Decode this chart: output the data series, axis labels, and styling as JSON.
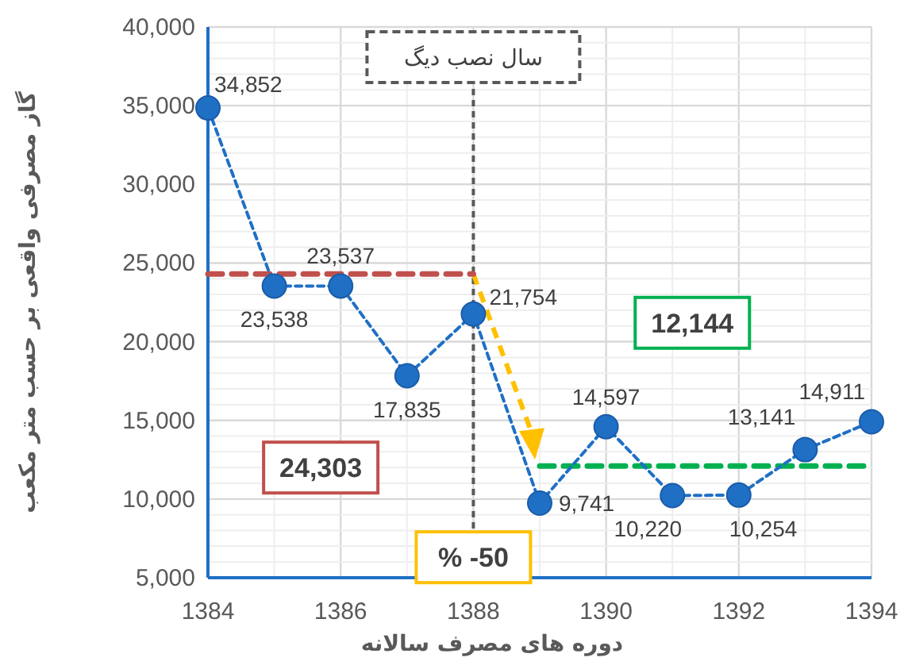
{
  "chart_data": {
    "type": "line",
    "xlabel": "دوره های مصرف سالانه",
    "ylabel": "گاز مصرفی واقعی بر حسب متر مکعب",
    "x": [
      1384,
      1385,
      1386,
      1387,
      1388,
      1389,
      1390,
      1391,
      1392,
      1393,
      1394
    ],
    "series": [
      {
        "color": "#1f6fc5",
        "values": [
          34852,
          23538,
          23537,
          17835,
          21754,
          9741,
          14597,
          10220,
          10254,
          13141,
          14911
        ],
        "marker": "circle",
        "line_style": "dashed",
        "value_labels": [
          "34,852",
          "23,538",
          "23,537",
          "17,835",
          "21,754",
          "9,741",
          "14,597",
          "10,220",
          "10,254",
          "13,141",
          "14,911"
        ]
      },
      {
        "color": "#c0504d",
        "x": [
          1384,
          1388
        ],
        "values": [
          24300,
          24300
        ],
        "marker": "none",
        "line_style": "dashed"
      },
      {
        "color": "#00b050",
        "x": [
          1389,
          1394
        ],
        "values": [
          12100,
          12100
        ],
        "marker": "none",
        "line_style": "dashed"
      }
    ],
    "ref_lines": [
      {
        "axis": "x",
        "value": 1388,
        "label": "سال نصب دیگ",
        "color": "#595959",
        "line_style": "dashed"
      }
    ],
    "annotations": [
      "24,303",
      "12,144",
      "% -50"
    ],
    "xlim": [
      1384,
      1394
    ],
    "ylim": [
      5000,
      40000
    ],
    "xticks": [
      1384,
      1386,
      1388,
      1390,
      1392,
      1394
    ],
    "yticks": [
      {
        "value": 5000,
        "label": "5,000"
      },
      {
        "value": 10000,
        "label": "10,000"
      },
      {
        "value": 15000,
        "label": "15,000"
      },
      {
        "value": 20000,
        "label": "20,000"
      },
      {
        "value": 25000,
        "label": "25,000"
      },
      {
        "value": 30000,
        "label": "30,000"
      },
      {
        "value": 35000,
        "label": "35,000"
      },
      {
        "value": 40000,
        "label": "40,000"
      }
    ],
    "grid": true
  }
}
